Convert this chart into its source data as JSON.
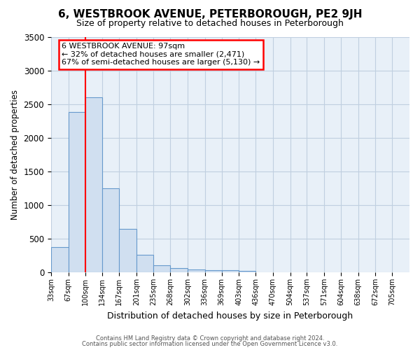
{
  "title": "6, WESTBROOK AVENUE, PETERBOROUGH, PE2 9JH",
  "subtitle": "Size of property relative to detached houses in Peterborough",
  "xlabel": "Distribution of detached houses by size in Peterborough",
  "ylabel": "Number of detached properties",
  "bar_color": "#d0dff0",
  "bar_edge_color": "#6699cc",
  "red_line_x": 100,
  "annotation_title": "6 WESTBROOK AVENUE: 97sqm",
  "annotation_line1": "← 32% of detached houses are smaller (2,471)",
  "annotation_line2": "67% of semi-detached houses are larger (5,130) →",
  "footer_line1": "Contains HM Land Registry data © Crown copyright and database right 2024.",
  "footer_line2": "Contains public sector information licensed under the Open Government Licence v3.0.",
  "categories": [
    "33sqm",
    "67sqm",
    "100sqm",
    "134sqm",
    "167sqm",
    "201sqm",
    "235sqm",
    "268sqm",
    "302sqm",
    "336sqm",
    "369sqm",
    "403sqm",
    "436sqm",
    "470sqm",
    "504sqm",
    "537sqm",
    "571sqm",
    "604sqm",
    "638sqm",
    "672sqm",
    "705sqm"
  ],
  "bin_edges": [
    33,
    67,
    100,
    134,
    167,
    201,
    235,
    268,
    302,
    336,
    369,
    403,
    436,
    470,
    504,
    537,
    571,
    604,
    638,
    672,
    705,
    739
  ],
  "values": [
    375,
    2380,
    2600,
    1250,
    650,
    265,
    110,
    60,
    40,
    30,
    30,
    20,
    0,
    0,
    0,
    0,
    0,
    0,
    0,
    0,
    0
  ],
  "ylim": [
    0,
    3500
  ],
  "yticks": [
    0,
    500,
    1000,
    1500,
    2000,
    2500,
    3000,
    3500
  ],
  "plot_bg_color": "#e8f0f8",
  "background_color": "#ffffff",
  "grid_color": "#c0cfe0"
}
